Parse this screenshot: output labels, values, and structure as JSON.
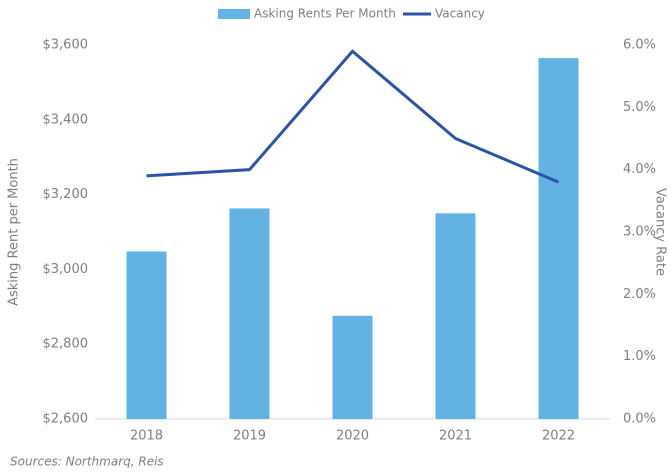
{
  "chart_data": {
    "type": "bar",
    "categories": [
      "2018",
      "2019",
      "2020",
      "2021",
      "2022"
    ],
    "series": [
      {
        "name": "Asking Rents Per Month",
        "type": "bar",
        "color": "#62b3e4",
        "values": [
          3048,
          3163,
          2876,
          3150,
          3565
        ]
      },
      {
        "name": "Vacancy",
        "type": "line",
        "axis": "y2",
        "color": "#2b54a6",
        "values": [
          3.9,
          4.0,
          5.9,
          4.5,
          3.8
        ]
      }
    ],
    "y_label": "Asking Rent per Month",
    "y2_label": "Vacancy Rate",
    "ylim": [
      2600,
      3600
    ],
    "yticks": [
      {
        "value": 2600,
        "label": "$2,600"
      },
      {
        "value": 2800,
        "label": "$2,800"
      },
      {
        "value": 3000,
        "label": "$3,000"
      },
      {
        "value": 3200,
        "label": "$3,200"
      },
      {
        "value": 3400,
        "label": "$3,400"
      },
      {
        "value": 3600,
        "label": "$3,600"
      }
    ],
    "y2lim": [
      0,
      6
    ],
    "y2ticks": [
      {
        "value": 0,
        "label": "0.0%"
      },
      {
        "value": 1,
        "label": "1.0%"
      },
      {
        "value": 2,
        "label": "2.0%"
      },
      {
        "value": 3,
        "label": "3.0%"
      },
      {
        "value": 4,
        "label": "4.0%"
      },
      {
        "value": 5,
        "label": "5.0%"
      },
      {
        "value": 6,
        "label": "6.0%"
      }
    ],
    "legend": "top",
    "source": "Sources: Northmarq, Reis"
  }
}
